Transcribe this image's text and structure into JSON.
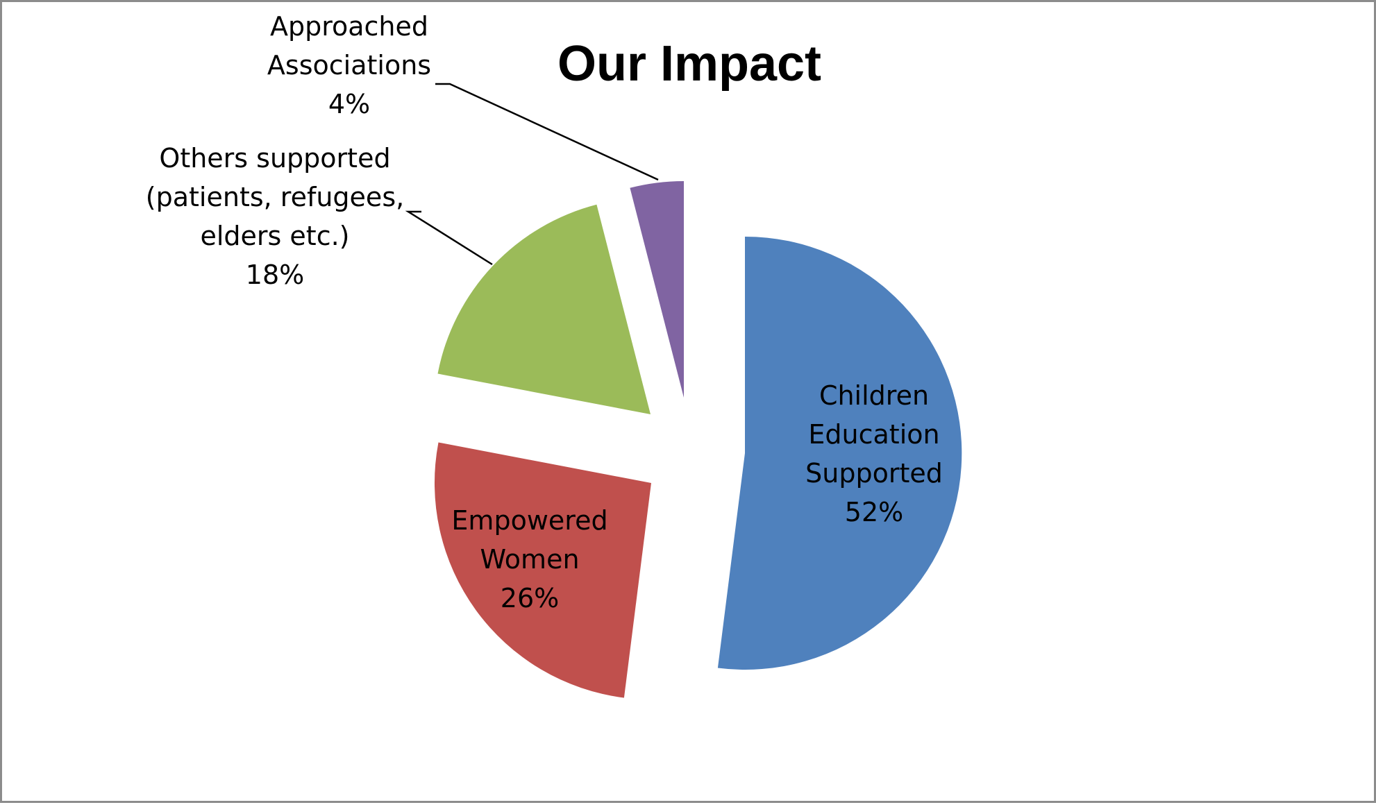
{
  "chart_data": {
    "type": "pie",
    "title": "Our Impact",
    "exploded": true,
    "start_angle_deg": 0,
    "direction": "clockwise",
    "slices": [
      {
        "label": [
          "Children",
          "Education",
          "Supported"
        ],
        "value": 52,
        "percent_text": "52%",
        "color": "#4F81BD",
        "label_position": "inside"
      },
      {
        "label": [
          "Empowered",
          "Women"
        ],
        "value": 26,
        "percent_text": "26%",
        "color": "#C0504D",
        "label_position": "inside"
      },
      {
        "label": [
          "Others supported",
          "(patients, refugees,",
          "elders etc.)"
        ],
        "value": 18,
        "percent_text": "18%",
        "color": "#9BBB59",
        "label_position": "outside"
      },
      {
        "label": [
          "Approached",
          "Associations"
        ],
        "value": 4,
        "percent_text": "4%",
        "color": "#8064A2",
        "label_position": "outside"
      }
    ]
  }
}
